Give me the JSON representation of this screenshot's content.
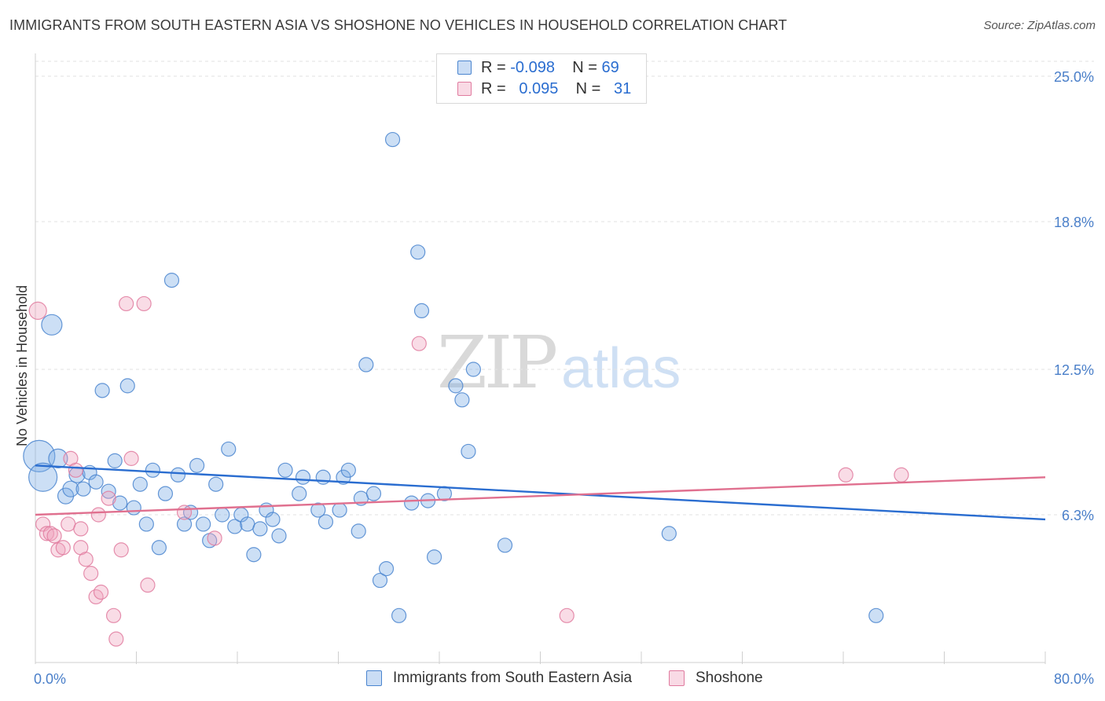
{
  "header": {
    "title": "IMMIGRANTS FROM SOUTH EASTERN ASIA VS SHOSHONE NO VEHICLES IN HOUSEHOLD CORRELATION CHART",
    "source": "Source: ZipAtlas.com"
  },
  "watermark": {
    "zip": "ZIP",
    "atlas": "atlas"
  },
  "legend_top": [
    {
      "r_label": "R = ",
      "r_value": "-0.098",
      "n_label": "N = ",
      "n_value": "69",
      "color": "#7aaae6"
    },
    {
      "r_label": "R = ",
      "r_value": "0.095",
      "n_label": "N = ",
      "n_value": "31",
      "color": "#f0a3bd"
    }
  ],
  "chart_data": {
    "type": "scatter",
    "title": "IMMIGRANTS FROM SOUTH EASTERN ASIA VS SHOSHONE NO VEHICLES IN HOUSEHOLD CORRELATION CHART",
    "xlabel": "",
    "ylabel": "No Vehicles in Household",
    "xlim": [
      0,
      80
    ],
    "ylim": [
      0,
      25
    ],
    "x_tick_labels": [
      "0.0%",
      "80.0%"
    ],
    "y_ticks": [
      6.3,
      12.5,
      18.8,
      25.0
    ],
    "y_tick_labels": [
      "6.3%",
      "12.5%",
      "18.8%",
      "25.0%"
    ],
    "grid": "horizontal dashed",
    "legend_position": "top-center and bottom",
    "series": [
      {
        "name": "Immigrants from South Eastern Asia",
        "color": "#7aaae6",
        "stroke": "#4a85cf",
        "trend": {
          "x": [
            0,
            80
          ],
          "y": [
            8.4,
            6.1
          ]
        },
        "points": [
          {
            "x": 0.3,
            "y": 8.8,
            "s": 20
          },
          {
            "x": 0.6,
            "y": 7.9,
            "s": 18
          },
          {
            "x": 1.3,
            "y": 14.4,
            "s": 13
          },
          {
            "x": 1.8,
            "y": 8.7,
            "s": 12
          },
          {
            "x": 2.4,
            "y": 7.1,
            "s": 10
          },
          {
            "x": 2.8,
            "y": 7.4,
            "s": 10
          },
          {
            "x": 3.3,
            "y": 8.0,
            "s": 10
          },
          {
            "x": 3.8,
            "y": 7.4,
            "s": 9
          },
          {
            "x": 4.3,
            "y": 8.1,
            "s": 9
          },
          {
            "x": 4.8,
            "y": 7.7,
            "s": 9
          },
          {
            "x": 5.3,
            "y": 11.6,
            "s": 9
          },
          {
            "x": 5.8,
            "y": 7.3,
            "s": 9
          },
          {
            "x": 6.3,
            "y": 8.6,
            "s": 9
          },
          {
            "x": 6.7,
            "y": 6.8,
            "s": 9
          },
          {
            "x": 7.3,
            "y": 11.8,
            "s": 9
          },
          {
            "x": 7.8,
            "y": 6.6,
            "s": 9
          },
          {
            "x": 8.3,
            "y": 7.6,
            "s": 9
          },
          {
            "x": 8.8,
            "y": 5.9,
            "s": 9
          },
          {
            "x": 9.3,
            "y": 8.2,
            "s": 9
          },
          {
            "x": 9.8,
            "y": 4.9,
            "s": 9
          },
          {
            "x": 10.3,
            "y": 7.2,
            "s": 9
          },
          {
            "x": 10.8,
            "y": 16.3,
            "s": 9
          },
          {
            "x": 11.3,
            "y": 8.0,
            "s": 9
          },
          {
            "x": 11.8,
            "y": 5.9,
            "s": 9
          },
          {
            "x": 12.3,
            "y": 6.4,
            "s": 9
          },
          {
            "x": 12.8,
            "y": 8.4,
            "s": 9
          },
          {
            "x": 13.3,
            "y": 5.9,
            "s": 9
          },
          {
            "x": 13.8,
            "y": 5.2,
            "s": 9
          },
          {
            "x": 14.3,
            "y": 7.6,
            "s": 9
          },
          {
            "x": 14.8,
            "y": 6.3,
            "s": 9
          },
          {
            "x": 15.3,
            "y": 9.1,
            "s": 9
          },
          {
            "x": 15.8,
            "y": 5.8,
            "s": 9
          },
          {
            "x": 16.3,
            "y": 6.3,
            "s": 9
          },
          {
            "x": 16.8,
            "y": 5.9,
            "s": 9
          },
          {
            "x": 17.3,
            "y": 4.6,
            "s": 9
          },
          {
            "x": 17.8,
            "y": 5.7,
            "s": 9
          },
          {
            "x": 18.3,
            "y": 6.5,
            "s": 9
          },
          {
            "x": 18.8,
            "y": 6.1,
            "s": 9
          },
          {
            "x": 19.3,
            "y": 5.4,
            "s": 9
          },
          {
            "x": 19.8,
            "y": 8.2,
            "s": 9
          },
          {
            "x": 20.9,
            "y": 7.2,
            "s": 9
          },
          {
            "x": 21.2,
            "y": 7.9,
            "s": 9
          },
          {
            "x": 22.4,
            "y": 6.5,
            "s": 9
          },
          {
            "x": 22.8,
            "y": 7.9,
            "s": 9
          },
          {
            "x": 24.1,
            "y": 6.5,
            "s": 9
          },
          {
            "x": 24.4,
            "y": 7.9,
            "s": 9
          },
          {
            "x": 24.8,
            "y": 8.2,
            "s": 9
          },
          {
            "x": 25.6,
            "y": 5.6,
            "s": 9
          },
          {
            "x": 25.8,
            "y": 7.0,
            "s": 9
          },
          {
            "x": 26.2,
            "y": 12.7,
            "s": 9
          },
          {
            "x": 26.8,
            "y": 7.2,
            "s": 9
          },
          {
            "x": 27.3,
            "y": 3.5,
            "s": 9
          },
          {
            "x": 27.8,
            "y": 4.0,
            "s": 9
          },
          {
            "x": 28.3,
            "y": 22.3,
            "s": 9
          },
          {
            "x": 28.8,
            "y": 2.0,
            "s": 9
          },
          {
            "x": 29.8,
            "y": 6.8,
            "s": 9
          },
          {
            "x": 30.3,
            "y": 17.5,
            "s": 9
          },
          {
            "x": 30.6,
            "y": 15.0,
            "s": 9
          },
          {
            "x": 31.1,
            "y": 6.9,
            "s": 9
          },
          {
            "x": 31.6,
            "y": 4.5,
            "s": 9
          },
          {
            "x": 32.4,
            "y": 7.2,
            "s": 9
          },
          {
            "x": 33.3,
            "y": 11.8,
            "s": 9
          },
          {
            "x": 33.8,
            "y": 11.2,
            "s": 9
          },
          {
            "x": 34.3,
            "y": 9.0,
            "s": 9
          },
          {
            "x": 34.7,
            "y": 12.5,
            "s": 9
          },
          {
            "x": 37.2,
            "y": 5.0,
            "s": 9
          },
          {
            "x": 50.2,
            "y": 5.5,
            "s": 9
          },
          {
            "x": 66.6,
            "y": 2.0,
            "s": 9
          },
          {
            "x": 23.0,
            "y": 6.0,
            "s": 9
          }
        ]
      },
      {
        "name": "Shoshone",
        "color": "#f0a3bd",
        "stroke": "#e07b9f",
        "trend": {
          "x": [
            0,
            80
          ],
          "y": [
            6.3,
            7.9
          ]
        },
        "points": [
          {
            "x": 0.2,
            "y": 15.0,
            "s": 11
          },
          {
            "x": 0.6,
            "y": 5.9,
            "s": 9
          },
          {
            "x": 0.9,
            "y": 5.5,
            "s": 9
          },
          {
            "x": 1.2,
            "y": 5.5,
            "s": 9
          },
          {
            "x": 1.5,
            "y": 5.4,
            "s": 9
          },
          {
            "x": 1.8,
            "y": 4.8,
            "s": 9
          },
          {
            "x": 2.2,
            "y": 4.9,
            "s": 9
          },
          {
            "x": 2.6,
            "y": 5.9,
            "s": 9
          },
          {
            "x": 2.8,
            "y": 8.7,
            "s": 9
          },
          {
            "x": 3.2,
            "y": 8.2,
            "s": 9
          },
          {
            "x": 3.6,
            "y": 5.7,
            "s": 9
          },
          {
            "x": 3.6,
            "y": 4.9,
            "s": 9
          },
          {
            "x": 4.0,
            "y": 4.4,
            "s": 9
          },
          {
            "x": 4.4,
            "y": 3.8,
            "s": 9
          },
          {
            "x": 4.8,
            "y": 2.8,
            "s": 9
          },
          {
            "x": 5.0,
            "y": 6.3,
            "s": 9
          },
          {
            "x": 5.2,
            "y": 3.0,
            "s": 9
          },
          {
            "x": 5.8,
            "y": 7.0,
            "s": 9
          },
          {
            "x": 6.2,
            "y": 2.0,
            "s": 9
          },
          {
            "x": 6.4,
            "y": 1.0,
            "s": 9
          },
          {
            "x": 6.8,
            "y": 4.8,
            "s": 9
          },
          {
            "x": 7.2,
            "y": 15.3,
            "s": 9
          },
          {
            "x": 7.6,
            "y": 8.7,
            "s": 9
          },
          {
            "x": 8.6,
            "y": 15.3,
            "s": 9
          },
          {
            "x": 8.9,
            "y": 3.3,
            "s": 9
          },
          {
            "x": 11.8,
            "y": 6.4,
            "s": 9
          },
          {
            "x": 14.2,
            "y": 5.3,
            "s": 9
          },
          {
            "x": 30.4,
            "y": 13.6,
            "s": 9
          },
          {
            "x": 42.1,
            "y": 2.0,
            "s": 9
          },
          {
            "x": 64.2,
            "y": 8.0,
            "s": 9
          },
          {
            "x": 68.6,
            "y": 8.0,
            "s": 9
          }
        ]
      }
    ]
  }
}
